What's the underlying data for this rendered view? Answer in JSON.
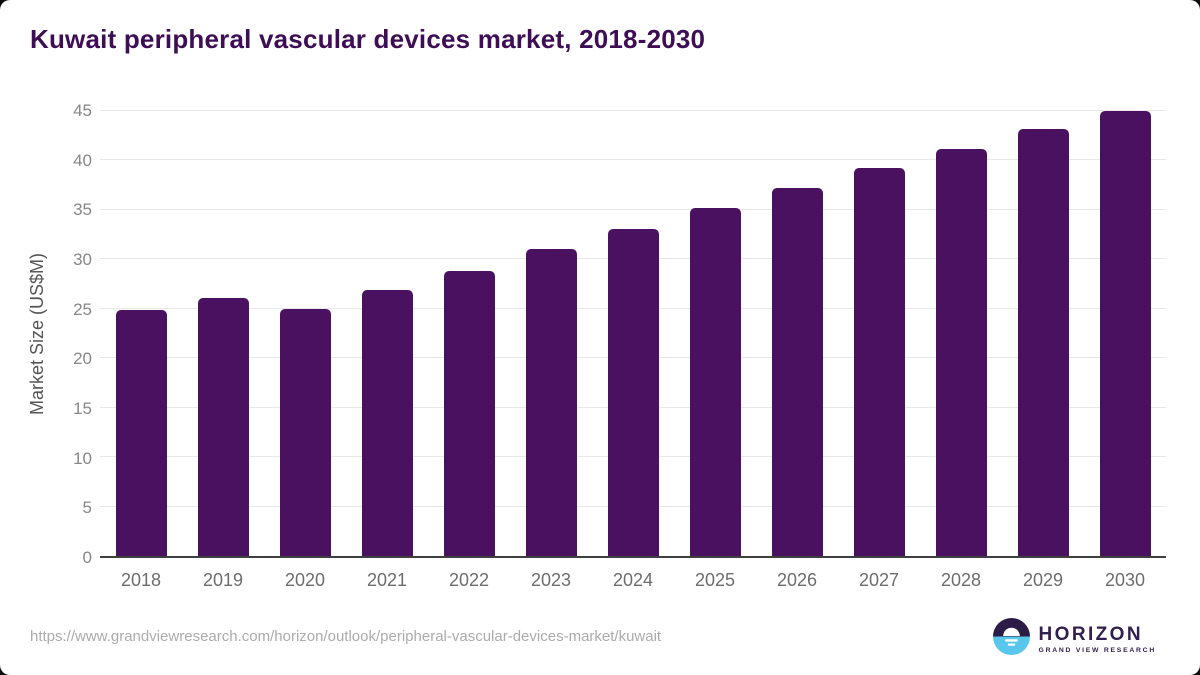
{
  "title": "Kuwait peripheral vascular devices market, 2018-2030",
  "chart_data": {
    "type": "bar",
    "categories": [
      "2018",
      "2019",
      "2020",
      "2021",
      "2022",
      "2023",
      "2024",
      "2025",
      "2026",
      "2027",
      "2028",
      "2029",
      "2030"
    ],
    "values": [
      24.9,
      26.1,
      25.0,
      26.9,
      28.8,
      31.0,
      33.1,
      35.2,
      37.2,
      39.2,
      41.2,
      43.2,
      45.0
    ],
    "title": "Kuwait peripheral vascular devices market, 2018-2030",
    "xlabel": "",
    "ylabel": "Market Size (US$M)",
    "ylim": [
      0,
      45
    ],
    "yticks": [
      0,
      5,
      10,
      15,
      20,
      25,
      30,
      35,
      40,
      45
    ],
    "grid": "horizontal",
    "legend": "none"
  },
  "colors": {
    "bar": "#4a1160",
    "title": "#3e0e55",
    "grid": "#e8e8e8",
    "axis_line": "#3f3f3f",
    "y_tick_text": "#878787",
    "x_tick_text": "#6d6d6d",
    "axis_title_text": "#555555",
    "url_text": "#ababab",
    "logo_purple": "#31204e",
    "logo_blue": "#59c6ec",
    "logo_dark": "#2d1b47"
  },
  "footer": {
    "source_url": "https://www.grandviewresearch.com/horizon/outlook/peripheral-vascular-devices-market/kuwait",
    "logo": {
      "name": "HORIZON",
      "subtitle": "GRAND VIEW RESEARCH",
      "icon": "horizon-sunset-icon"
    }
  }
}
